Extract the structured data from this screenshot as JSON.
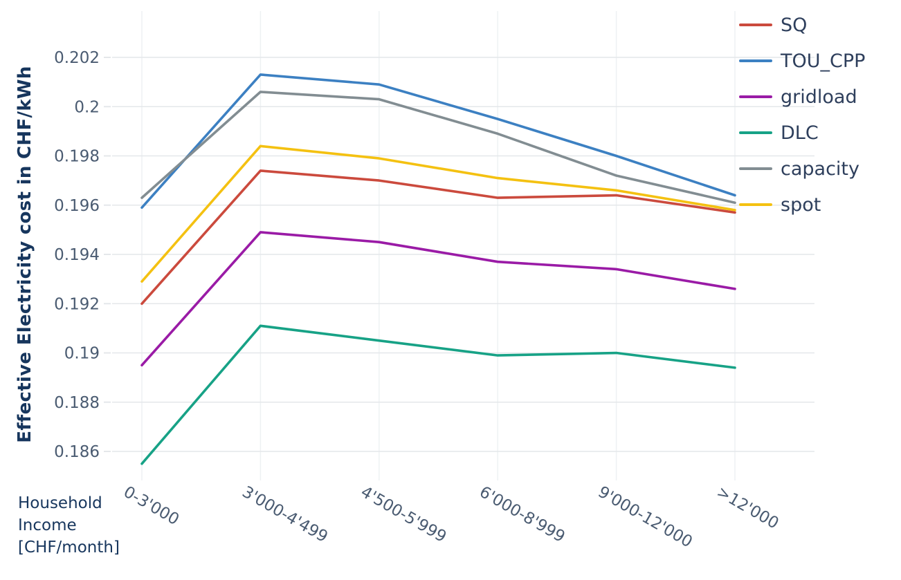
{
  "chart_data": {
    "type": "line",
    "categories": [
      "0-3'000",
      "3'000-4'499",
      "4'500-5'999",
      "6'000-8'999",
      "9'000-12'000",
      ">12'000"
    ],
    "series": [
      {
        "name": "SQ",
        "color": "#cb4a3d",
        "values": [
          0.192,
          0.1974,
          0.197,
          0.1963,
          0.1964,
          0.1957
        ]
      },
      {
        "name": "TOU_CPP",
        "color": "#3c80c2",
        "values": [
          0.1959,
          0.2013,
          0.2009,
          0.1995,
          0.198,
          0.1964
        ]
      },
      {
        "name": "gridload",
        "color": "#9a1ba6",
        "values": [
          0.1895,
          0.1949,
          0.1945,
          0.1937,
          0.1934,
          0.1926
        ]
      },
      {
        "name": "DLC",
        "color": "#17a286",
        "values": [
          0.1855,
          0.1911,
          0.1905,
          0.1899,
          0.19,
          0.1894
        ]
      },
      {
        "name": "capacity",
        "color": "#828d92",
        "values": [
          0.1963,
          0.2006,
          0.2003,
          0.1989,
          0.1972,
          0.1961
        ]
      },
      {
        "name": "spot",
        "color": "#f4c111",
        "values": [
          0.1929,
          0.1984,
          0.1979,
          0.1971,
          0.1966,
          0.1958
        ]
      }
    ],
    "ylabel": "Effective Electricity cost in CHF/kWh",
    "xlabel": "Household\nIncome\n[CHF/month]",
    "y_ticks": [
      {
        "v": 0.202,
        "label": "0.202"
      },
      {
        "v": 0.2,
        "label": "0.2"
      },
      {
        "v": 0.198,
        "label": "0.198"
      },
      {
        "v": 0.196,
        "label": "0.196"
      },
      {
        "v": 0.194,
        "label": "0.194"
      },
      {
        "v": 0.192,
        "label": "0.192"
      },
      {
        "v": 0.19,
        "label": "0.19"
      },
      {
        "v": 0.188,
        "label": "0.188"
      },
      {
        "v": 0.186,
        "label": "0.186"
      }
    ],
    "ylim": [
      0.1848,
      0.2039
    ],
    "grid": true,
    "legend_position": "top-right",
    "colors": {
      "axis_title": "#17365d",
      "tick_text": "#4a5b71",
      "legend_text": "#2e3f5c",
      "gridline": "#e4e7ea",
      "minor_vertical_gridline": "#eef1f3"
    }
  }
}
